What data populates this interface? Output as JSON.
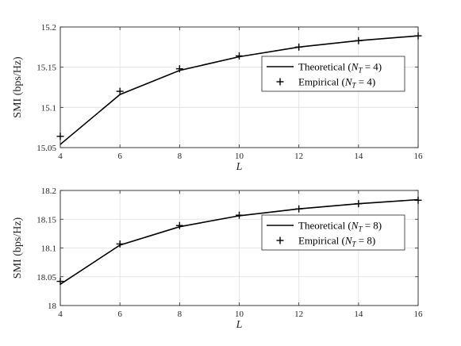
{
  "chart_data": [
    {
      "type": "line",
      "x": [
        4,
        6,
        8,
        10,
        12,
        14,
        16
      ],
      "xlim": [
        4,
        16
      ],
      "ylim": [
        15.05,
        15.2
      ],
      "xticks": [
        "4",
        "6",
        "8",
        "10",
        "12",
        "14",
        "16"
      ],
      "yticks": [
        "15.05",
        "15.1",
        "15.15",
        "15.2"
      ],
      "xlabel": "L",
      "ylabel": "SMI (bps/Hz)",
      "grid": true,
      "legend": "center-right",
      "series": [
        {
          "name": "Theoretical (N_T = 4)",
          "legend_text": "Theoretical (",
          "legend_var": "N",
          "legend_sub": "T",
          "legend_suffix": " = 4)",
          "style": "line",
          "values": [
            15.054,
            15.116,
            15.146,
            15.163,
            15.175,
            15.183,
            15.189
          ]
        },
        {
          "name": "Empirical (N_T = 4)",
          "legend_text": "Empirical (",
          "legend_var": "N",
          "legend_sub": "T",
          "legend_suffix": " = 4)",
          "style": "plus",
          "values": [
            15.064,
            15.12,
            15.148,
            15.164,
            15.175,
            15.183,
            15.189
          ]
        }
      ]
    },
    {
      "type": "line",
      "x": [
        4,
        6,
        8,
        10,
        12,
        14,
        16
      ],
      "xlim": [
        4,
        16
      ],
      "ylim": [
        18.0,
        18.2
      ],
      "xticks": [
        "4",
        "6",
        "8",
        "10",
        "12",
        "14",
        "16"
      ],
      "yticks": [
        "18",
        "18.05",
        "18.1",
        "18.15",
        "18.2"
      ],
      "xlabel": "L",
      "ylabel": "SMI (bps/Hz)",
      "grid": true,
      "legend": "center-right",
      "series": [
        {
          "name": "Theoretical (N_T = 8)",
          "legend_text": "Theoretical (",
          "legend_var": "N",
          "legend_sub": "T",
          "legend_suffix": " = 8)",
          "style": "line",
          "values": [
            18.037,
            18.105,
            18.137,
            18.156,
            18.168,
            18.177,
            18.184
          ]
        },
        {
          "name": "Empirical (N_T = 8)",
          "legend_text": "Empirical (",
          "legend_var": "N",
          "legend_sub": "T",
          "legend_suffix": " = 8)",
          "style": "plus",
          "values": [
            18.042,
            18.107,
            18.139,
            18.157,
            18.168,
            18.177,
            18.183
          ]
        }
      ]
    }
  ]
}
